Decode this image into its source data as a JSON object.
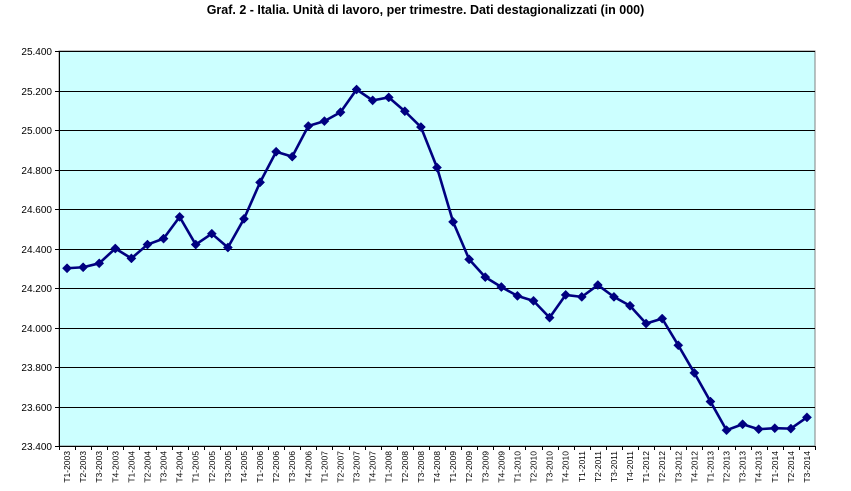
{
  "chart_data": {
    "type": "line",
    "title": "Graf. 2 - Italia. Unità di lavoro, per trimestre. Dati destagionalizzati (in 000)",
    "xlabel": "",
    "ylabel": "",
    "ylim": [
      23400,
      25400
    ],
    "y_tick_values": [
      23400,
      23600,
      23800,
      24000,
      24200,
      24400,
      24600,
      24800,
      25000,
      25200,
      25400
    ],
    "y_tick_labels": [
      "23.400",
      "23.600",
      "23.800",
      "24.000",
      "24.200",
      "24.400",
      "24.600",
      "24.800",
      "25.000",
      "25.200",
      "25.400"
    ],
    "grid": true,
    "legend": "none",
    "categories": [
      "T1-2003",
      "T2-2003",
      "T3-2003",
      "T4-2003",
      "T1-2004",
      "T2-2004",
      "T3-2004",
      "T4-2004",
      "T1-2005",
      "T2-2005",
      "T3-2005",
      "T4-2005",
      "T1-2006",
      "T2-2006",
      "T3-2006",
      "T4-2006",
      "T1-2007",
      "T2-2007",
      "T3-2007",
      "T4-2007",
      "T1-2008",
      "T2-2008",
      "T3-2008",
      "T4-2008",
      "T1-2009",
      "T2-2009",
      "T3-2009",
      "T4-2009",
      "T1-2010",
      "T2-2010",
      "T3-2010",
      "T4-2010",
      "T1-2011",
      "T2-2011",
      "T3-2011",
      "T4-2011",
      "T1-2012",
      "T2-2012",
      "T3-2012",
      "T4-2012",
      "T1-2013",
      "T2-2013",
      "T3-2013",
      "T4-2013",
      "T1-2014",
      "T2-2014",
      "T3-2014"
    ],
    "series": [
      {
        "values": [
          24300,
          24305,
          24325,
          24400,
          24350,
          24420,
          24450,
          24560,
          24420,
          24475,
          24405,
          24550,
          24735,
          24890,
          24865,
          25020,
          25045,
          25090,
          25205,
          25150,
          25165,
          25095,
          25015,
          24810,
          24535,
          24345,
          24255,
          24205,
          24160,
          24135,
          24050,
          24165,
          24155,
          24215,
          24155,
          24110,
          24020,
          24045,
          23910,
          23770,
          23625,
          23480,
          23510,
          23485,
          23490,
          23488,
          23545
        ]
      }
    ]
  },
  "colors": {
    "plot_background": "#ccffff",
    "series_line": "#000080",
    "marker": "#000080",
    "gridline": "#000000"
  }
}
